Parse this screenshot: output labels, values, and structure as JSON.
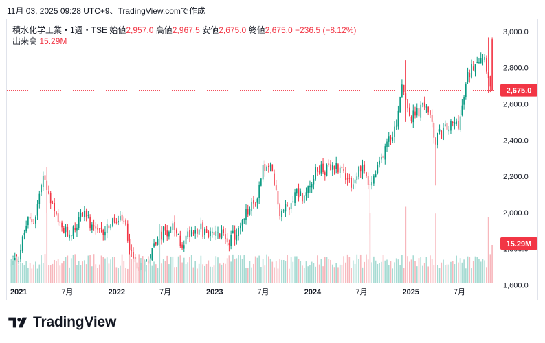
{
  "header": {
    "caption": "11月 03, 2025 09:28 UTC+9、TradingView.comで作成"
  },
  "legend": {
    "symbol": "積水化学工業・1週・TSE",
    "open_label": "始値",
    "open": "2,957.0",
    "high_label": "高値",
    "high": "2,967.5",
    "low_label": "安値",
    "low": "2,675.0",
    "close_label": "終値",
    "close": "2,675.0",
    "change": "−236.5 (−8.12%)",
    "volume_label": "出来高",
    "volume": "15.29M"
  },
  "price_badge": "2,675.0",
  "volume_badge": "15.29M",
  "logo": {
    "text": "TradingView",
    "icon": "tradingview-logo-icon"
  },
  "colors": {
    "up": "#089981",
    "down": "#f23645",
    "up_volume": "#a7dbd3",
    "down_volume": "#f7b7bc"
  },
  "chart_data": {
    "type": "candlestick",
    "interval": "1週",
    "yaxis": {
      "min": 1530,
      "max": 3060,
      "ticks": [
        "3,000.0",
        "2,800.0",
        "2,600.0",
        "2,400.0",
        "2,200.0",
        "2,000.0",
        "1,800.0",
        "1,600.0"
      ],
      "tick_values": [
        3000,
        2800,
        2600,
        2400,
        2200,
        2000,
        1800,
        1600
      ]
    },
    "xaxis": {
      "labels": [
        "2021",
        "7月",
        "2022",
        "7月",
        "2023",
        "7月",
        "2024",
        "7月",
        "2025",
        "7月"
      ],
      "bold": [
        "2021",
        "2022",
        "2023",
        "2024",
        "2025"
      ]
    },
    "last_price": 2675.0,
    "anchors": [
      [
        "2020-12-01",
        1700
      ],
      [
        "2021-01-01",
        1760
      ],
      [
        "2021-02-01",
        1950
      ],
      [
        "2021-03-01",
        1960
      ],
      [
        "2021-04-01",
        2200
      ],
      [
        "2021-05-01",
        2050
      ],
      [
        "2021-06-01",
        1920
      ],
      [
        "2021-07-01",
        1880
      ],
      [
        "2021-08-01",
        1920
      ],
      [
        "2021-09-01",
        2020
      ],
      [
        "2021-10-01",
        1900
      ],
      [
        "2021-11-01",
        1880
      ],
      [
        "2021-12-01",
        1930
      ],
      [
        "2022-01-01",
        1950
      ],
      [
        "2022-02-01",
        1940
      ],
      [
        "2022-03-01",
        1740
      ],
      [
        "2022-04-01",
        1700
      ],
      [
        "2022-05-01",
        1750
      ],
      [
        "2022-06-01",
        1860
      ],
      [
        "2022-07-01",
        1900
      ],
      [
        "2022-08-01",
        1910
      ],
      [
        "2022-09-01",
        1820
      ],
      [
        "2022-10-01",
        1900
      ],
      [
        "2022-11-01",
        1920
      ],
      [
        "2022-12-01",
        1880
      ],
      [
        "2023-01-01",
        1870
      ],
      [
        "2023-02-01",
        1880
      ],
      [
        "2023-03-01",
        1850
      ],
      [
        "2023-04-01",
        1900
      ],
      [
        "2023-05-01",
        2000
      ],
      [
        "2023-06-01",
        2050
      ],
      [
        "2023-07-01",
        2250
      ],
      [
        "2023-08-01",
        2230
      ],
      [
        "2023-09-01",
        2000
      ],
      [
        "2023-10-01",
        2030
      ],
      [
        "2023-11-01",
        2120
      ],
      [
        "2023-12-01",
        2080
      ],
      [
        "2024-01-01",
        2200
      ],
      [
        "2024-02-01",
        2250
      ],
      [
        "2024-03-01",
        2230
      ],
      [
        "2024-04-01",
        2260
      ],
      [
        "2024-05-01",
        2220
      ],
      [
        "2024-06-01",
        2150
      ],
      [
        "2024-07-01",
        2270
      ],
      [
        "2024-08-01",
        2150
      ],
      [
        "2024-09-01",
        2240
      ],
      [
        "2024-10-01",
        2380
      ],
      [
        "2024-11-01",
        2450
      ],
      [
        "2024-12-01",
        2700
      ],
      [
        "2025-01-01",
        2520
      ],
      [
        "2025-02-01",
        2560
      ],
      [
        "2025-03-01",
        2600
      ],
      [
        "2025-04-01",
        2400
      ],
      [
        "2025-05-01",
        2450
      ],
      [
        "2025-06-01",
        2480
      ],
      [
        "2025-07-01",
        2500
      ],
      [
        "2025-08-01",
        2750
      ],
      [
        "2025-09-01",
        2850
      ],
      [
        "2025-10-01",
        2870
      ],
      [
        "2025-10-31",
        2675
      ]
    ],
    "spikes": [
      [
        "2021-04-15",
        2250,
        1980
      ],
      [
        "2022-06-10",
        1760,
        1620
      ],
      [
        "2024-08-05",
        2070,
        1880
      ],
      [
        "2024-12-10",
        2840,
        2500
      ],
      [
        "2025-04-07",
        2420,
        2150
      ],
      [
        "2025-10-20",
        2967.5,
        2660
      ]
    ]
  }
}
